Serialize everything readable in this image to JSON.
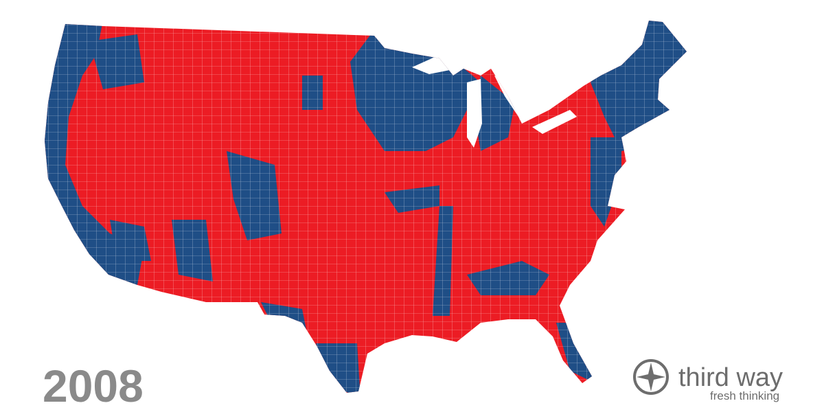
{
  "year": "2008",
  "logo": {
    "name": "third way",
    "tagline": "fresh thinking"
  }
}
